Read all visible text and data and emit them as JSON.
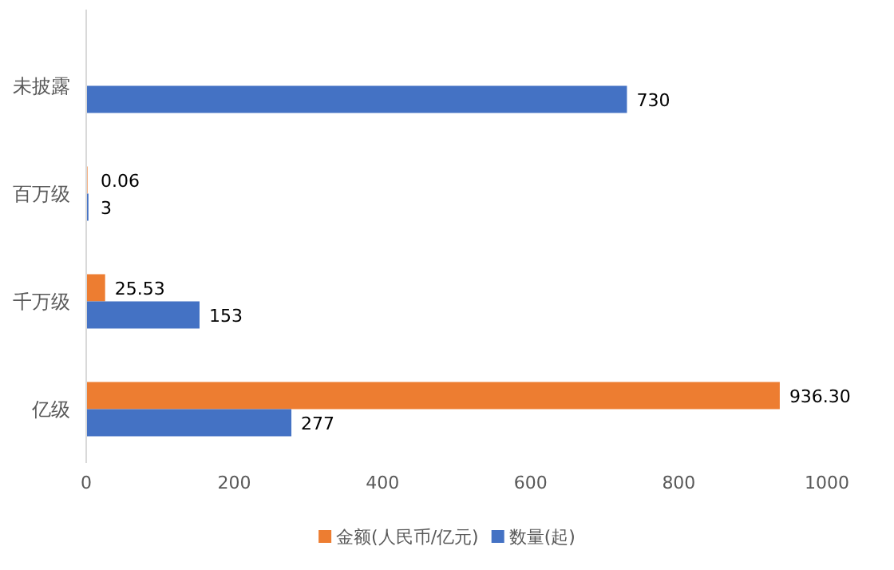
{
  "chart_data": {
    "type": "bar",
    "orientation": "horizontal",
    "categories": [
      "未披露",
      "百万级",
      "千万级",
      "亿级"
    ],
    "series": [
      {
        "name": "金额(人民币/亿元)",
        "color": "#ed7d31",
        "values": [
          null,
          0.06,
          25.53,
          936.3
        ],
        "value_labels": [
          null,
          "0.06",
          "25.53",
          "936.30"
        ]
      },
      {
        "name": "数量(起)",
        "color": "#4472c4",
        "values": [
          730,
          3,
          153,
          277
        ],
        "value_labels": [
          "730",
          "3",
          "153",
          "277"
        ]
      }
    ],
    "xlim": [
      0,
      1000
    ],
    "xticks": [
      0,
      200,
      400,
      600,
      800,
      1000
    ],
    "legend": "bottom"
  }
}
